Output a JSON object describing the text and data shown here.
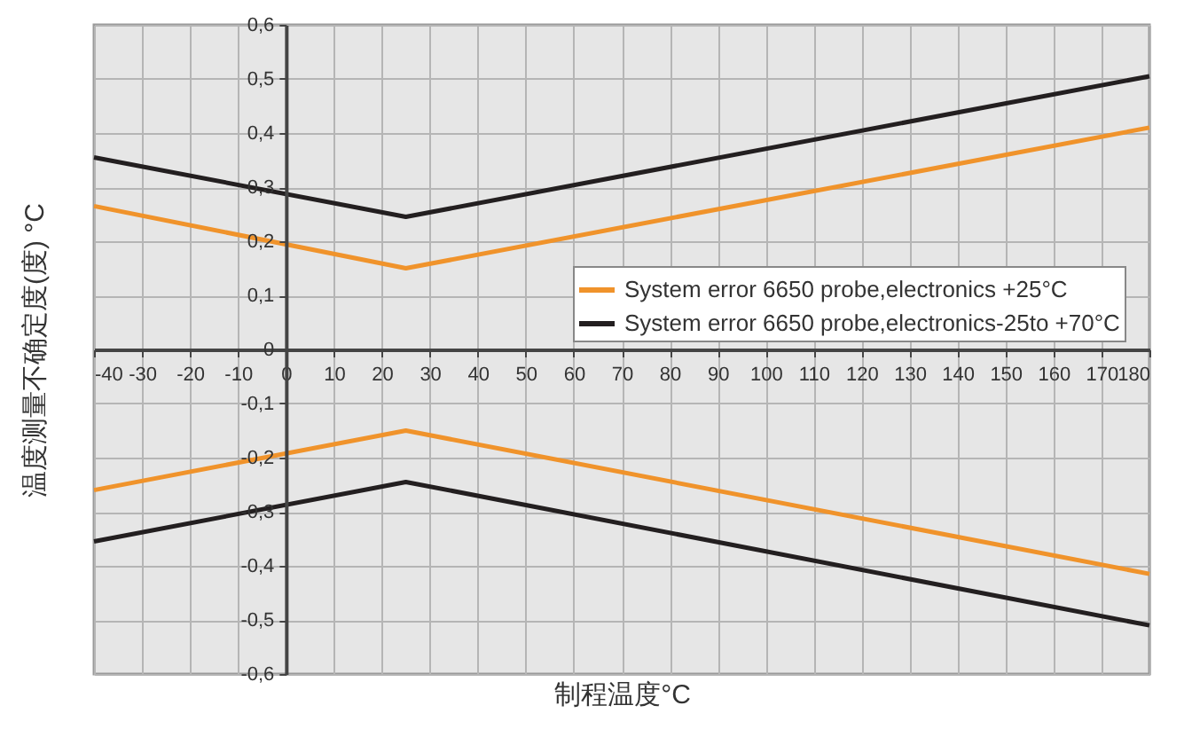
{
  "chart_data": {
    "type": "line",
    "xlabel": "制程温度°C",
    "ylabel": "温度测量不确定度(度) °C",
    "x": [
      -40,
      25,
      180
    ],
    "series": [
      {
        "name": "System error 6650 probe,electronics +25°C",
        "color": "#f0932b",
        "values": [
          0.265,
          0.15,
          0.41
        ]
      },
      {
        "name": "System error 6650 probe,electronics-25to +70°C",
        "color": "#231f20",
        "values": [
          0.355,
          0.245,
          0.505
        ]
      },
      {
        "color": "#f0932b",
        "values": [
          -0.26,
          -0.15,
          -0.415
        ]
      },
      {
        "color": "#231f20",
        "values": [
          -0.355,
          -0.245,
          -0.51
        ]
      }
    ],
    "xlim": [
      -40,
      180
    ],
    "xticks": [
      -40,
      -30,
      -20,
      -10,
      0,
      10,
      20,
      30,
      40,
      50,
      60,
      70,
      80,
      90,
      100,
      110,
      120,
      130,
      140,
      150,
      160,
      170,
      180
    ],
    "ylim": [
      -0.6,
      0.6
    ],
    "yticks": [
      {
        "value": -0.6,
        "label": "-0,6"
      },
      {
        "value": -0.5,
        "label": "-0,5"
      },
      {
        "value": -0.4,
        "label": "-0,4"
      },
      {
        "value": -0.3,
        "label": "-0,3"
      },
      {
        "value": -0.2,
        "label": "-0,2"
      },
      {
        "value": -0.1,
        "label": "-0,1"
      },
      0,
      {
        "value": 0.1,
        "label": "0,1"
      },
      {
        "value": 0.2,
        "label": "0,2"
      },
      {
        "value": 0.3,
        "label": "0,3"
      },
      {
        "value": 0.4,
        "label": "0,4"
      },
      {
        "value": 0.5,
        "label": "0,5"
      },
      {
        "value": 0.6,
        "label": "0,6"
      }
    ],
    "grid": true,
    "legend": "right"
  }
}
